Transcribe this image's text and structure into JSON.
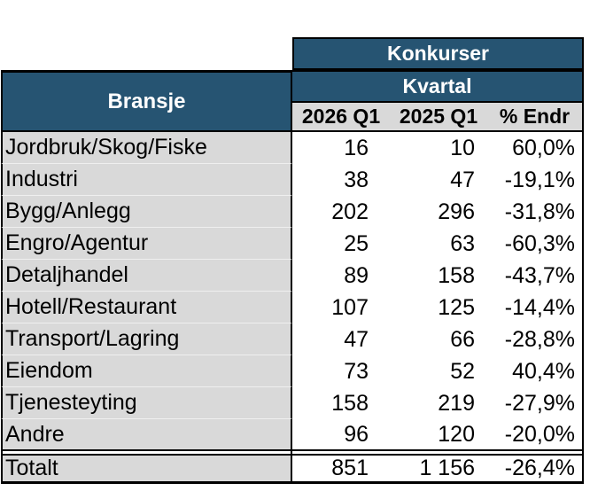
{
  "colors": {
    "header_blue": "#265472",
    "row_gray": "#D9D9D9",
    "border_black": "#000000",
    "header_text_white": "#FFFFFF"
  },
  "chart_data": {
    "type": "table",
    "title": "Konkurser",
    "subtitle": "Kvartal",
    "row_header": "Bransje",
    "columns": [
      "2026 Q1",
      "2025 Q1",
      "% Endr"
    ],
    "rows": [
      {
        "bransje": "Jordbruk/Skog/Fiske",
        "q2026": "16",
        "q2025": "10",
        "endr": "60,0%"
      },
      {
        "bransje": "Industri",
        "q2026": "38",
        "q2025": "47",
        "endr": "-19,1%"
      },
      {
        "bransje": "Bygg/Anlegg",
        "q2026": "202",
        "q2025": "296",
        "endr": "-31,8%"
      },
      {
        "bransje": "Engro/Agentur",
        "q2026": "25",
        "q2025": "63",
        "endr": "-60,3%"
      },
      {
        "bransje": "Detaljhandel",
        "q2026": "89",
        "q2025": "158",
        "endr": "-43,7%"
      },
      {
        "bransje": "Hotell/Restaurant",
        "q2026": "107",
        "q2025": "125",
        "endr": "-14,4%"
      },
      {
        "bransje": "Transport/Lagring",
        "q2026": "47",
        "q2025": "66",
        "endr": "-28,8%"
      },
      {
        "bransje": "Eiendom",
        "q2026": "73",
        "q2025": "52",
        "endr": "40,4%"
      },
      {
        "bransje": "Tjenesteyting",
        "q2026": "158",
        "q2025": "219",
        "endr": "-27,9%"
      },
      {
        "bransje": "Andre",
        "q2026": "96",
        "q2025": "120",
        "endr": "-20,0%"
      }
    ],
    "total": {
      "bransje": "Totalt",
      "q2026": "851",
      "q2025": "1 156",
      "endr": "-26,4%"
    }
  }
}
